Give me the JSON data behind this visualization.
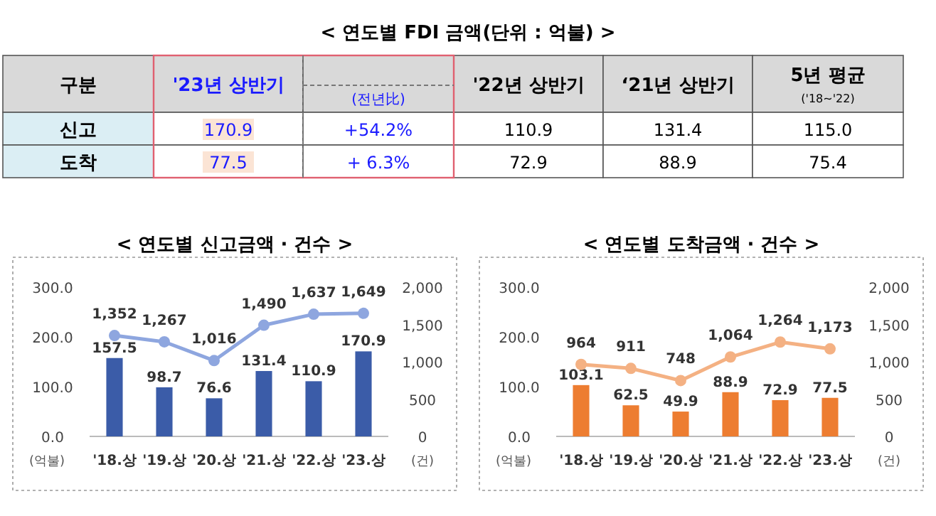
{
  "chart_data": [
    {
      "type": "other",
      "title": "< 연도별 FDI 금액(단위 : 억불) >",
      "annotations": [
        "구분",
        "'23년 상반기",
        "(전년比)",
        "'22년 상반기",
        "‘21년 상반기",
        "5년 평균",
        "신고",
        "170.9",
        "+54.2%",
        "110.9",
        "131.4",
        "115.0",
        "도착",
        "77.5",
        "+  6.3%",
        "72.9",
        "88.9",
        "75.4",
        "('18~'22)"
      ]
    },
    {
      "type": "bar",
      "title": "< 연도별 신고금액 · 건수 >",
      "ylabel": "(억불)",
      "y2label": "(건)",
      "categories": [
        "'18.상",
        "'19.상",
        "'20.상",
        "'21.상",
        "'22.상",
        "'23.상"
      ],
      "series": [
        {
          "type": "bar",
          "color": "#3b5ca8",
          "values": [
            157.5,
            98.7,
            76.6,
            131.4,
            110.9,
            170.9
          ],
          "value_labels": [
            "157.5",
            "98.7",
            "76.6",
            "131.4",
            "110.9",
            "170.9"
          ]
        },
        {
          "type": "line",
          "axis": "y2",
          "color": "#8ea6df",
          "marker": "circle",
          "values": [
            1352,
            1267,
            1016,
            1490,
            1637,
            1649
          ],
          "value_labels": [
            "1,352",
            "1,267",
            "1,016",
            "1,490",
            "1,637",
            "1,649"
          ]
        }
      ],
      "ylim": [
        0,
        300
      ],
      "yticks": [
        {
          "value": 0,
          "label": "0.0"
        },
        {
          "value": 100,
          "label": "100.0"
        },
        {
          "value": 200,
          "label": "200.0"
        },
        {
          "value": 300,
          "label": "300.0"
        }
      ],
      "y2lim": [
        0,
        2000
      ],
      "y2ticks": [
        {
          "value": 0,
          "label": "0"
        },
        {
          "value": 500,
          "label": "500"
        },
        {
          "value": 1000,
          "label": "1,000"
        },
        {
          "value": 1500,
          "label": "1,500"
        },
        {
          "value": 2000,
          "label": "2,000"
        }
      ]
    },
    {
      "type": "bar",
      "title": "< 연도별 도착금액 · 건수 >",
      "ylabel": "(억불)",
      "y2label": "(건)",
      "categories": [
        "'18.상",
        "'19.상",
        "'20.상",
        "'21.상",
        "'22.상",
        "'23.상"
      ],
      "series": [
        {
          "type": "bar",
          "color": "#ed7d31",
          "values": [
            103.1,
            62.5,
            49.9,
            88.9,
            72.9,
            77.5
          ],
          "value_labels": [
            "103.1",
            "62.5",
            "49.9",
            "88.9",
            "72.9",
            "77.5"
          ]
        },
        {
          "type": "line",
          "axis": "y2",
          "color": "#f4b183",
          "marker": "circle",
          "values": [
            964,
            911,
            748,
            1064,
            1264,
            1173
          ],
          "value_labels": [
            "964",
            "911",
            "748",
            "1,064",
            "1,264",
            "1,173"
          ]
        }
      ],
      "ylim": [
        0,
        300
      ],
      "yticks": [
        {
          "value": 0,
          "label": "0.0"
        },
        {
          "value": 100,
          "label": "100.0"
        },
        {
          "value": 200,
          "label": "200.0"
        },
        {
          "value": 300,
          "label": "300.0"
        }
      ],
      "y2lim": [
        0,
        2000
      ],
      "y2ticks": [
        {
          "value": 0,
          "label": "0"
        },
        {
          "value": 500,
          "label": "500"
        },
        {
          "value": 1000,
          "label": "1,000"
        },
        {
          "value": 1500,
          "label": "1,500"
        },
        {
          "value": 2000,
          "label": "2,000"
        }
      ]
    }
  ]
}
